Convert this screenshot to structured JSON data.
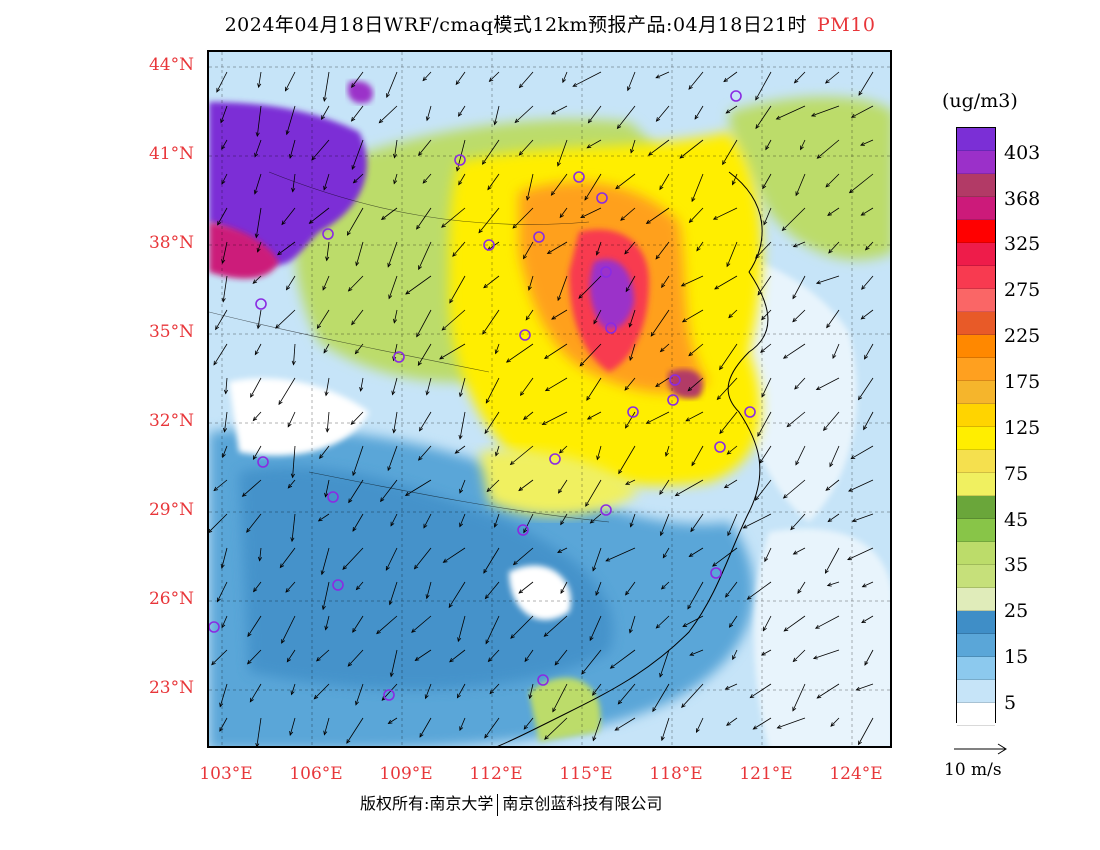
{
  "header": {
    "title": "2024年04月18日WRF/cmaq模式12km预报产品:04月18日21时",
    "pollutant": "PM10"
  },
  "axes": {
    "lat_labels": [
      "44°N",
      "41°N",
      "38°N",
      "35°N",
      "32°N",
      "29°N",
      "26°N",
      "23°N"
    ],
    "lon_labels": [
      "103°E",
      "106°E",
      "109°E",
      "112°E",
      "115°E",
      "118°E",
      "121°E",
      "124°E"
    ]
  },
  "legend": {
    "units": "(ug/m3)",
    "labels": [
      "403",
      "368",
      "325",
      "275",
      "225",
      "175",
      "125",
      "75",
      "45",
      "35",
      "25",
      "15",
      "5"
    ],
    "colors": [
      "#7b2fd6",
      "#9b30c9",
      "#b23a66",
      "#cc1a7a",
      "#ff0000",
      "#ee1c4a",
      "#f83a50",
      "#fa6666",
      "#e85a28",
      "#ff8800",
      "#ffa01f",
      "#f5b52c",
      "#ffd400",
      "#ffee00",
      "#f5e04e",
      "#f0f060",
      "#6aa63a",
      "#88c548",
      "#bcdc6a",
      "#c6e07a",
      "#e0ecba",
      "#3f8ec7",
      "#5aa6d8",
      "#8cc9ee",
      "#c6e4f8",
      "#ffffff"
    ]
  },
  "wind_scale": {
    "label": "10 m/s"
  },
  "footer": {
    "copyright_left": "版权所有:南京大学",
    "copyright_right": "南京创蓝科技有限公司"
  }
}
